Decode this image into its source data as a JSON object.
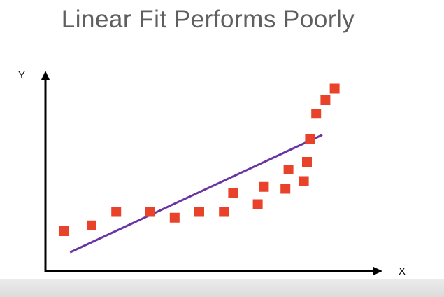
{
  "title": "Linear Fit Performs Poorly",
  "colors": {
    "points": "#e8432a",
    "fit_line": "#6a35a3",
    "axes": "#000000",
    "title": "#5f5f5f"
  },
  "chart_data": {
    "type": "scatter",
    "title": "Linear Fit Performs Poorly",
    "xlabel": "X",
    "ylabel": "Y",
    "xlim": [
      0,
      10
    ],
    "ylim": [
      0,
      10
    ],
    "grid": false,
    "series": [
      {
        "type": "scatter",
        "x": [
          0.6,
          1.5,
          2.3,
          3.4,
          4.2,
          5.0,
          5.8,
          6.1,
          6.9,
          7.1,
          7.8,
          7.9,
          8.4,
          8.5,
          8.6,
          8.8,
          9.1,
          9.4
        ],
        "y": [
          2.0,
          2.3,
          3.0,
          3.0,
          2.7,
          3.0,
          3.0,
          4.0,
          3.4,
          4.3,
          4.2,
          5.2,
          4.6,
          5.6,
          6.8,
          8.1,
          8.8,
          9.4
        ]
      },
      {
        "type": "line",
        "x": [
          0.8,
          9.0
        ],
        "y": [
          0.9,
          7.0
        ]
      }
    ]
  }
}
